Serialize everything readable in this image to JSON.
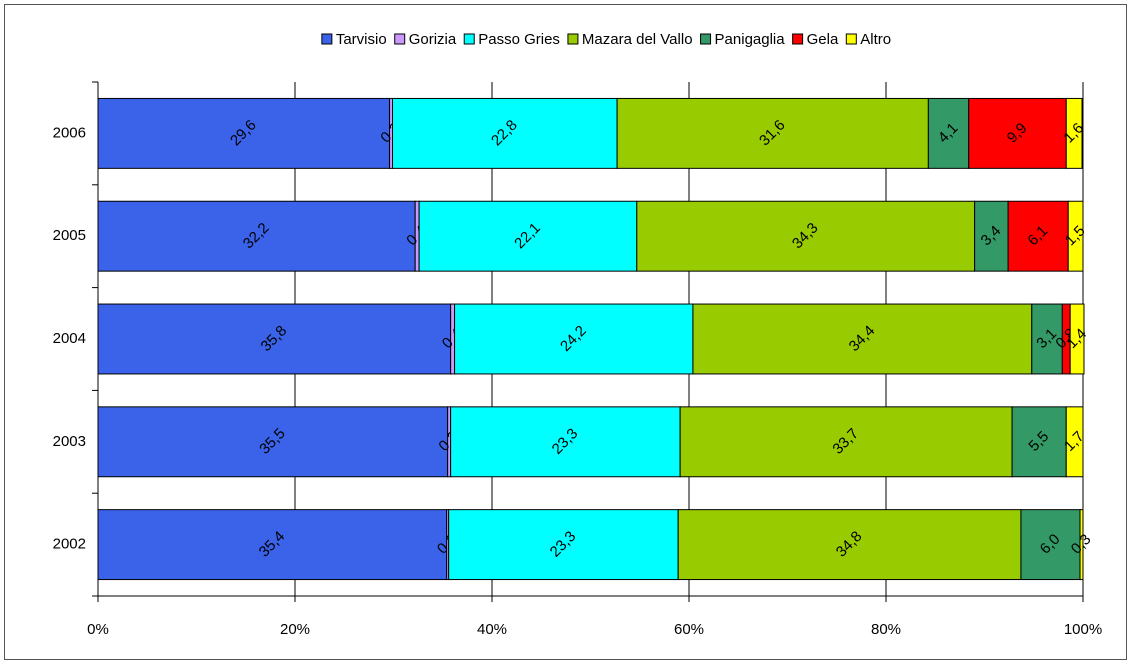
{
  "chart_data": {
    "type": "stacked-bar-horizontal",
    "categories": [
      "2006",
      "2005",
      "2004",
      "2003",
      "2002"
    ],
    "series": [
      {
        "name": "Tarvisio",
        "color": "#3b63ea",
        "values": [
          29.6,
          32.2,
          35.8,
          35.5,
          35.4
        ],
        "value_labels": [
          "29,6",
          "32,2",
          "35,8",
          "35,5",
          "35,4"
        ]
      },
      {
        "name": "Gorizia",
        "color": "#cc99ff",
        "values": [
          0.3,
          0.4,
          0.4,
          0.3,
          0.2
        ],
        "value_labels": [
          "0,3",
          "0,4",
          "0,4",
          "0,3",
          "0,2"
        ]
      },
      {
        "name": "Passo Gries",
        "color": "#00ffff",
        "values": [
          22.8,
          22.1,
          24.2,
          23.3,
          23.3
        ],
        "value_labels": [
          "22,8",
          "22,1",
          "24,2",
          "23,3",
          "23,3"
        ]
      },
      {
        "name": "Mazara del Vallo",
        "color": "#99cc00",
        "values": [
          31.6,
          34.3,
          34.4,
          33.7,
          34.8
        ],
        "value_labels": [
          "31,6",
          "34,3",
          "34,4",
          "33,7",
          "34,8"
        ]
      },
      {
        "name": "Panigaglia",
        "color": "#339966",
        "values": [
          4.1,
          3.4,
          3.1,
          5.5,
          6.0
        ],
        "value_labels": [
          "4,1",
          "3,4",
          "3,1",
          "5,5",
          "6,0"
        ]
      },
      {
        "name": "Gela",
        "color": "#ff0000",
        "values": [
          9.9,
          6.1,
          0.8,
          null,
          null
        ],
        "value_labels": [
          "9,9",
          "6,1",
          "0,8",
          null,
          null
        ]
      },
      {
        "name": "Altro",
        "color": "#ffff00",
        "values": [
          1.6,
          1.5,
          1.4,
          1.7,
          0.3
        ],
        "value_labels": [
          "1,6",
          "1,5",
          "1,4",
          "1,7",
          "0,3"
        ]
      }
    ],
    "xlim": [
      0,
      100
    ],
    "xticks": [
      {
        "value": 0,
        "label": "0%"
      },
      {
        "value": 20,
        "label": "20%"
      },
      {
        "value": 40,
        "label": "40%"
      },
      {
        "value": 60,
        "label": "60%"
      },
      {
        "value": 80,
        "label": "80%"
      },
      {
        "value": 100,
        "label": "100%"
      }
    ],
    "grid": true,
    "legend": "top"
  }
}
